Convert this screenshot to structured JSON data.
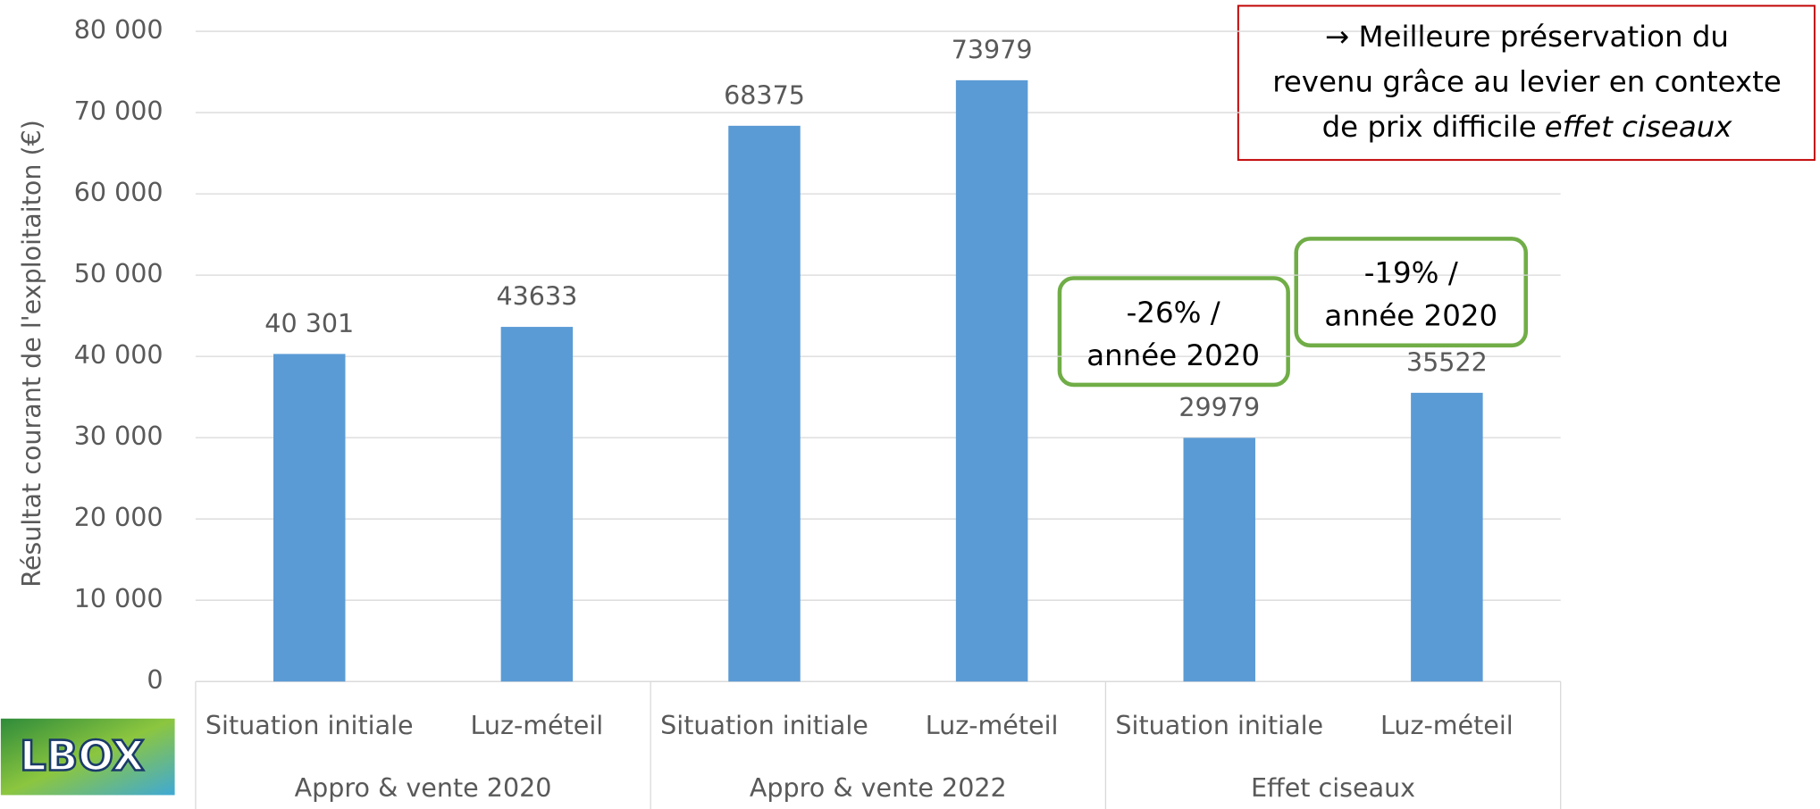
{
  "chart_data": {
    "type": "bar",
    "y_label": "Résultat courant de l'exploitaiton (€)",
    "categories": [
      "Situation initiale",
      "Luz-méteil",
      "Situation initiale",
      "Luz-méteil",
      "Situation initiale",
      "Luz-méteil"
    ],
    "groups": [
      "Appro & vente 2020",
      "Appro & vente 2022",
      "Effet ciseaux"
    ],
    "values": [
      40301,
      43633,
      68375,
      73979,
      29979,
      35522
    ],
    "value_labels": [
      "40 301",
      "43633",
      "68375",
      "73979",
      "29979",
      "35522"
    ],
    "color": "#5b9bd5",
    "ylim": [
      0,
      80000
    ],
    "yticks": [
      0,
      {
        "value": 10000,
        "label": "10 000"
      },
      {
        "value": 20000,
        "label": "20 000"
      },
      {
        "value": 30000,
        "label": "30 000"
      },
      {
        "value": 40000,
        "label": "40 000"
      },
      {
        "value": 50000,
        "label": "50 000"
      },
      {
        "value": 60000,
        "label": "60 000"
      },
      {
        "value": 70000,
        "label": "70 000"
      },
      {
        "value": 80000,
        "label": "80 000"
      }
    ],
    "grid": true,
    "note": {
      "lines": [
        "→ Meilleure préservation du",
        "revenu grâce au levier en contexte",
        "de prix difficile"
      ],
      "emphasis": "effet ciseaux"
    },
    "callouts": [
      {
        "lines": [
          "-26% /",
          "année 2020"
        ]
      },
      {
        "lines": [
          "-19% /",
          "année 2020"
        ]
      }
    ],
    "logo": "LBOX"
  }
}
